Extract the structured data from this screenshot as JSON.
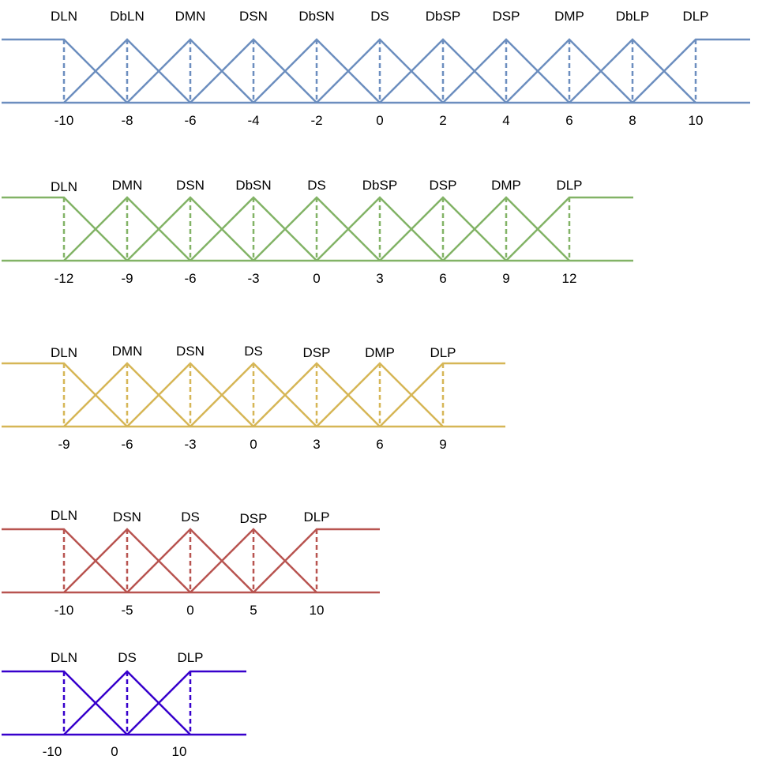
{
  "chart_data": [
    {
      "type": "membership_functions",
      "color": "#6c8ebf",
      "labels": [
        "DLN",
        "DbLN",
        "DMN",
        "DSN",
        "DbSN",
        "DS",
        "DbSP",
        "DSP",
        "DMP",
        "DbLP",
        "DLP"
      ],
      "ticks": [
        "-10",
        "-8",
        "-6",
        "-4",
        "-2",
        "0",
        "2",
        "4",
        "6",
        "8",
        "10"
      ]
    },
    {
      "type": "membership_functions",
      "color": "#82b366",
      "labels": [
        "DLN",
        "DMN",
        "DSN",
        "DbSN",
        "DS",
        "DbSP",
        "DSP",
        "DMP",
        "DLP"
      ],
      "ticks": [
        "-12",
        "-9",
        "-6",
        "-3",
        "0",
        "3",
        "6",
        "9",
        "12"
      ]
    },
    {
      "type": "membership_functions",
      "color": "#d6b656",
      "labels": [
        "DLN",
        "DMN",
        "DSN",
        "DS",
        "DSP",
        "DMP",
        "DLP"
      ],
      "ticks": [
        "-9",
        "-6",
        "-3",
        "0",
        "3",
        "6",
        "9"
      ]
    },
    {
      "type": "membership_functions",
      "color": "#b85450",
      "labels": [
        "DLN",
        "DSN",
        "DS",
        "DSP",
        "DLP"
      ],
      "ticks": [
        "-10",
        "-5",
        "0",
        "5",
        "10"
      ]
    },
    {
      "type": "membership_functions",
      "color": "#3700cc",
      "labels": [
        "DLN",
        "DS",
        "DLP"
      ],
      "ticks": [
        "-10",
        "0",
        "10"
      ]
    }
  ]
}
